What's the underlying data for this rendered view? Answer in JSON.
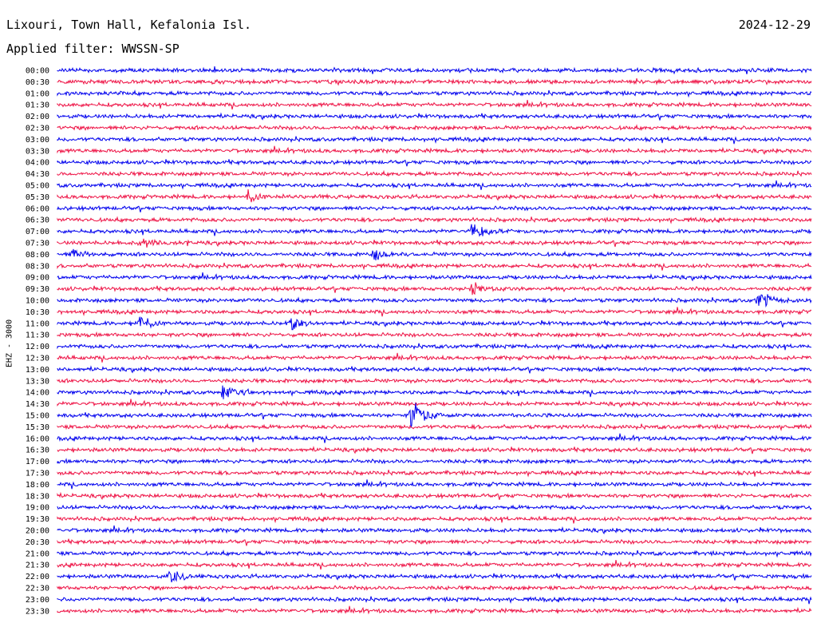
{
  "header": {
    "station": "Lixouri, Town Hall, Kefalonia Isl.",
    "date": "2024-12-29",
    "filter": "Applied filter: WWSSN-SP"
  },
  "chart_data": {
    "type": "line",
    "title": "Lixouri, Town Hall, Kefalonia Isl.",
    "channel_label": "EHZ - 3000",
    "row_labels": [
      "00:00",
      "00:30",
      "01:00",
      "01:30",
      "02:00",
      "02:30",
      "03:00",
      "03:30",
      "04:00",
      "04:30",
      "05:00",
      "05:30",
      "06:00",
      "06:30",
      "07:00",
      "07:30",
      "08:00",
      "08:30",
      "09:00",
      "09:30",
      "10:00",
      "10:30",
      "11:00",
      "11:30",
      "12:00",
      "12:30",
      "13:00",
      "13:30",
      "14:00",
      "14:30",
      "15:00",
      "15:30",
      "16:00",
      "16:30",
      "17:00",
      "17:30",
      "18:00",
      "18:30",
      "19:00",
      "19:30",
      "20:00",
      "20:30",
      "21:00",
      "21:30",
      "22:00",
      "22:30",
      "23:00",
      "23:30"
    ],
    "colors": [
      "#0000ee",
      "#ee1144"
    ],
    "events": [
      {
        "row": "05:30",
        "x": 0.25,
        "amplitude": 12
      },
      {
        "row": "07:00",
        "x": 0.55,
        "amplitude": 14
      },
      {
        "row": "07:30",
        "x": 0.11,
        "amplitude": 10
      },
      {
        "row": "08:00",
        "x": 0.02,
        "amplitude": 10
      },
      {
        "row": "08:00",
        "x": 0.42,
        "amplitude": 10
      },
      {
        "row": "09:30",
        "x": 0.55,
        "amplitude": 10
      },
      {
        "row": "10:00",
        "x": 0.93,
        "amplitude": 16
      },
      {
        "row": "11:00",
        "x": 0.11,
        "amplitude": 12
      },
      {
        "row": "11:00",
        "x": 0.31,
        "amplitude": 9
      },
      {
        "row": "14:00",
        "x": 0.22,
        "amplitude": 10
      },
      {
        "row": "15:00",
        "x": 0.47,
        "amplitude": 30
      },
      {
        "row": "22:00",
        "x": 0.15,
        "amplitude": 10
      }
    ]
  }
}
